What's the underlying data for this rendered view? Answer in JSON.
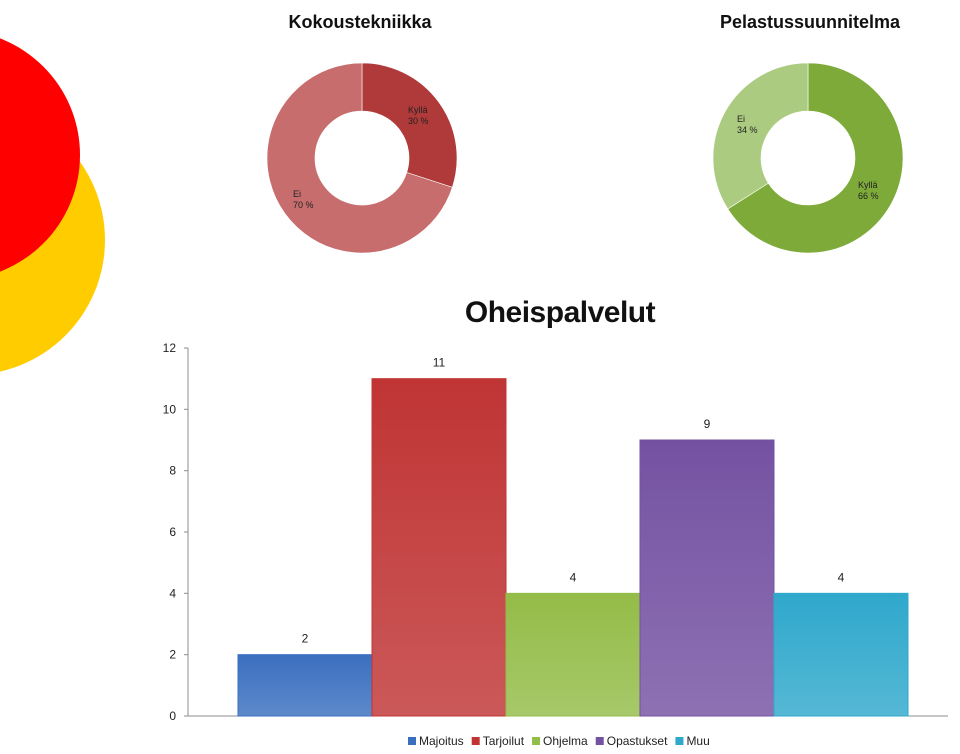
{
  "colors": {
    "deco_red": "#ff0000",
    "deco_yellow": "#ffcc00"
  },
  "chart_data": [
    {
      "id": "kokoustekniikka",
      "type": "pie",
      "style": "donut",
      "title": "Kokoustekniikka",
      "slices": [
        {
          "label": "Kyllä",
          "value": 30,
          "display": "30 %",
          "color": "#b03a3a"
        },
        {
          "label": "Ei",
          "value": 70,
          "display": "70 %",
          "color": "#c76d6d"
        }
      ]
    },
    {
      "id": "pelastussuunnitelma",
      "type": "pie",
      "style": "donut",
      "title": "Pelastussuunnitelma",
      "slices": [
        {
          "label": "Kyllä",
          "value": 66,
          "display": "66 %",
          "color": "#7eaa3a"
        },
        {
          "label": "Ei",
          "value": 34,
          "display": "34 %",
          "color": "#abcc80"
        }
      ]
    },
    {
      "id": "oheispalvelut",
      "type": "bar",
      "title": "Oheispalvelut",
      "categories": [
        "Majoitus",
        "Tarjoilut",
        "Ohjelma",
        "Opastukset",
        "Muu"
      ],
      "values": [
        2,
        11,
        4,
        9,
        4
      ],
      "colors": [
        "#3a6fbf",
        "#c03434",
        "#94bc48",
        "#7452a2",
        "#2fa8cc"
      ],
      "ylim": [
        0,
        12
      ],
      "yticks": [
        0,
        2,
        4,
        6,
        8,
        10,
        12
      ],
      "grid": false,
      "legend": "bottom"
    }
  ]
}
